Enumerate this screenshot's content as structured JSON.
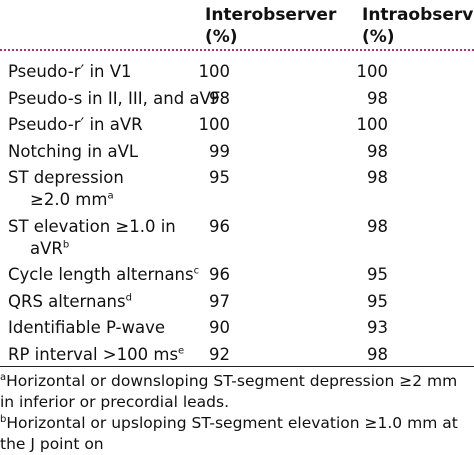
{
  "header": {
    "columns": [
      {
        "name": "Interobserver",
        "unit": "(%)"
      },
      {
        "name": "Intraobserver",
        "unit": "(%)"
      }
    ]
  },
  "rows": [
    {
      "label": [
        "Pseudo-r′ in V1"
      ],
      "inter": 100,
      "intra": 100
    },
    {
      "label": [
        "Pseudo-s in II, III, and aVF"
      ],
      "inter": 98,
      "intra": 98
    },
    {
      "label": [
        "Pseudo-r′ in aVR"
      ],
      "inter": 100,
      "intra": 100
    },
    {
      "label": [
        "Notching in aVL"
      ],
      "inter": 99,
      "intra": 98
    },
    {
      "label": [
        "ST depression",
        "≥2.0 mm"
      ],
      "note": "a",
      "inter": 95,
      "intra": 98
    },
    {
      "label": [
        "ST elevation ≥1.0 in",
        "aVR"
      ],
      "note": "b",
      "inter": 96,
      "intra": 98
    },
    {
      "label": [
        "Cycle length alternans"
      ],
      "note": "c",
      "inter": 96,
      "intra": 95
    },
    {
      "label": [
        "QRS alternans"
      ],
      "note": "d",
      "inter": 97,
      "intra": 95
    },
    {
      "label": [
        "Identifiable P-wave"
      ],
      "inter": 90,
      "intra": 93
    },
    {
      "label": [
        "RP interval >100 ms"
      ],
      "note": "e",
      "inter": 92,
      "intra": 98
    }
  ],
  "footnotes": [
    {
      "mark": "a",
      "text": "Horizontal or downsloping ST-segment depression ≥2 mm in inferior or precordial leads."
    },
    {
      "mark": "b",
      "text": "Horizontal or upsloping ST-segment elevation ≥1.0 mm at the J point on"
    }
  ]
}
